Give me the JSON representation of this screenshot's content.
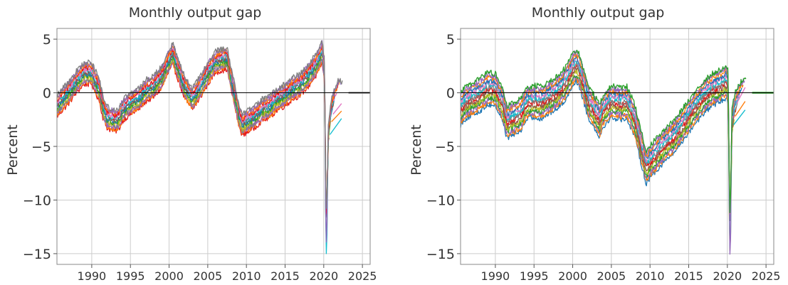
{
  "chart_data": [
    {
      "type": "line",
      "title": "Monthly output gap",
      "xlabel": "",
      "ylabel": "Percent",
      "xlim": [
        1985.5,
        2026
      ],
      "ylim": [
        -16,
        6
      ],
      "xticks": [
        1990,
        1995,
        2000,
        2005,
        2010,
        2015,
        2020,
        2025
      ],
      "xtick_labels": [
        "1990",
        "1995",
        "2000",
        "2005",
        "2010",
        "2015",
        "2020",
        "2025"
      ],
      "yticks": [
        5,
        0,
        -5,
        -10,
        -15
      ],
      "ytick_labels": [
        "5",
        "0",
        "−5",
        "−10",
        "−15"
      ],
      "reference_line": 0,
      "grid": true,
      "legend": "none",
      "palette": [
        "#e41a1c",
        "#ff7f0e",
        "#9467bd",
        "#7f7f7f",
        "#bcbd22",
        "#2ca02c",
        "#1f77b4",
        "#8c564b",
        "#17becf",
        "#e377c2"
      ],
      "reference_series": {
        "x": [
          1985.5,
          1986,
          1987,
          1988,
          1989,
          1990,
          1991,
          1991.5,
          1992,
          1993,
          1993.5,
          1994,
          1995,
          1996,
          1997,
          1998,
          1999,
          2000,
          2000.5,
          2001,
          2002,
          2003,
          2004,
          2005,
          2006,
          2007,
          2007.5,
          2008,
          2009,
          2009.5,
          2010,
          2011,
          2012,
          2013,
          2014,
          2015,
          2016,
          2017,
          2018,
          2019,
          2019.8,
          2020.1,
          2020.25,
          2020.35,
          2020.6,
          2021,
          2021.5,
          2022,
          2022.4
        ],
        "y": [
          -1.2,
          -0.8,
          0.0,
          1.0,
          1.8,
          1.8,
          0.2,
          -1.5,
          -2.3,
          -2.6,
          -2.4,
          -1.6,
          -1.0,
          -0.6,
          0.2,
          0.6,
          1.4,
          3.0,
          3.6,
          2.6,
          0.5,
          -0.6,
          0.5,
          1.8,
          2.9,
          3.1,
          3.2,
          1.4,
          -2.0,
          -3.0,
          -2.7,
          -2.3,
          -1.6,
          -1.3,
          -0.6,
          -0.2,
          0.4,
          0.8,
          1.6,
          2.6,
          3.8,
          2.0,
          -8.0,
          -12.0,
          -4.0,
          -1.5,
          -0.5,
          0.3,
          0.0
        ]
      },
      "ensemble_spread": [
        2.4,
        -1.2
      ],
      "ensemble_count": 14
    },
    {
      "type": "line",
      "title": "Monthly output gap",
      "xlabel": "",
      "ylabel": "Percent",
      "xlim": [
        1985.5,
        2026
      ],
      "ylim": [
        -16,
        6
      ],
      "xticks": [
        1990,
        1995,
        2000,
        2005,
        2010,
        2015,
        2020,
        2025
      ],
      "xtick_labels": [
        "1990",
        "1995",
        "2000",
        "2005",
        "2010",
        "2015",
        "2020",
        "2025"
      ],
      "yticks": [
        5,
        0,
        -5,
        -10,
        -15
      ],
      "ytick_labels": [
        "5",
        "0",
        "−5",
        "−10",
        "−15"
      ],
      "reference_line": 0,
      "grid": true,
      "legend": "none",
      "palette": [
        "#1f77b4",
        "#ff7f0e",
        "#9467bd",
        "#2ca02c",
        "#bcbd22",
        "#8c564b",
        "#e41a1c",
        "#7f7f7f",
        "#17becf",
        "#e377c2"
      ],
      "reference_series": {
        "x": [
          1985.5,
          1986,
          1987,
          1988,
          1989,
          1990,
          1991,
          1991.5,
          1992,
          1993,
          1993.5,
          1994,
          1995,
          1996,
          1997,
          1998,
          1999,
          2000,
          2000.5,
          2001,
          2002,
          2003,
          2003.5,
          2004,
          2005,
          2006,
          2007,
          2008,
          2009,
          2009.5,
          2010,
          2011,
          2012,
          2013,
          2014,
          2015,
          2016,
          2017,
          2018,
          2019,
          2019.8,
          2020.1,
          2020.25,
          2020.35,
          2020.6,
          2021,
          2021.5,
          2022,
          2022.4
        ],
        "y": [
          -1.5,
          -1.0,
          -0.6,
          -0.2,
          0.4,
          0.3,
          -1.2,
          -2.8,
          -2.5,
          -2.2,
          -1.8,
          -1.0,
          -0.8,
          -0.9,
          -0.4,
          0.0,
          0.8,
          2.2,
          2.6,
          1.8,
          -0.8,
          -2.0,
          -2.6,
          -1.6,
          -0.8,
          -1.0,
          -0.9,
          -2.5,
          -5.5,
          -7.0,
          -6.4,
          -5.6,
          -4.8,
          -4.2,
          -3.2,
          -2.2,
          -1.2,
          -0.4,
          0.3,
          0.6,
          1.0,
          0.5,
          -8.0,
          -12.5,
          -3.0,
          -1.5,
          -0.8,
          -0.2,
          0.0
        ]
      },
      "ensemble_spread": [
        2.6,
        -2.8
      ],
      "ensemble_count": 14
    }
  ]
}
